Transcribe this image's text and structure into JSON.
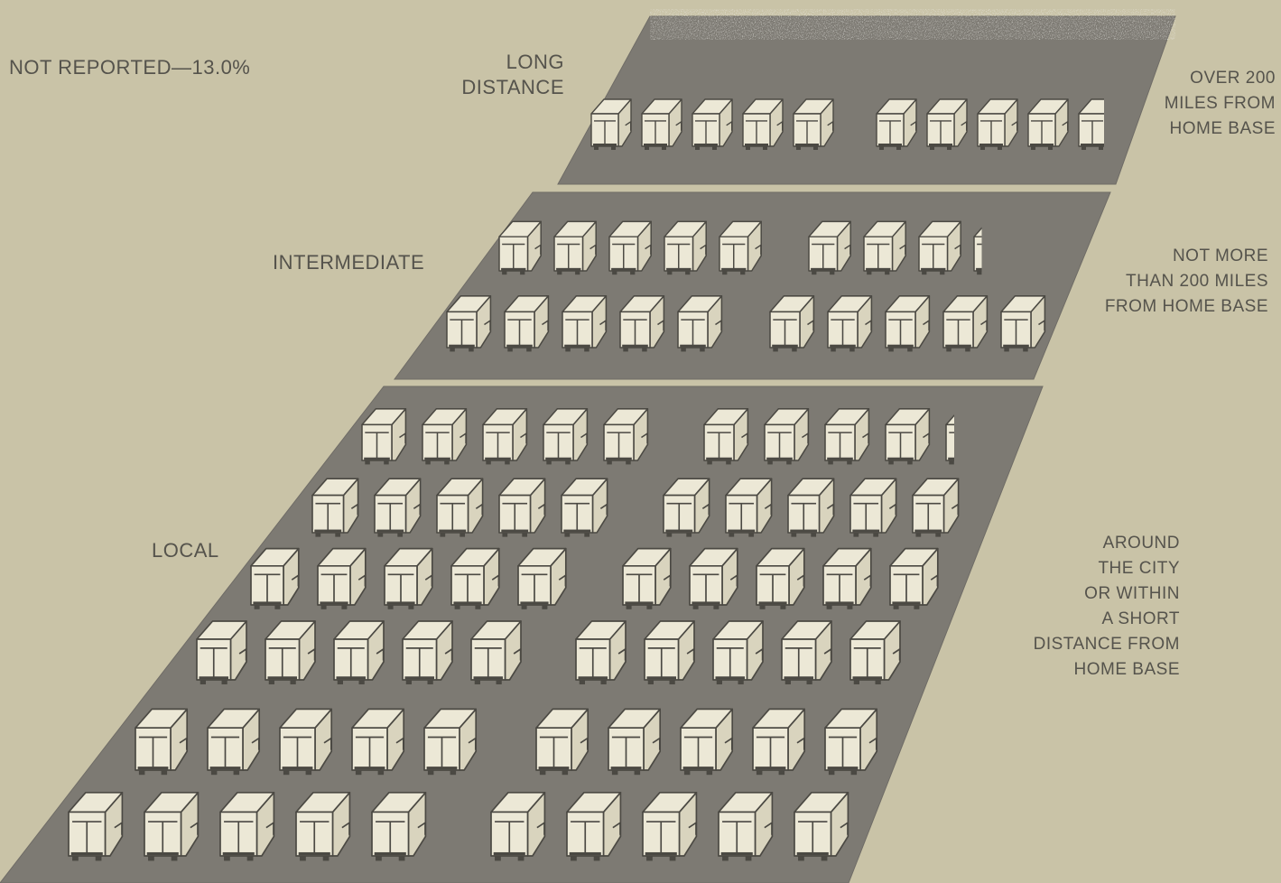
{
  "chart_data": {
    "type": "pictograph",
    "not_reported": "NOT REPORTED—13.0%",
    "bands": [
      {
        "name": "LONG DISTANCE",
        "label": "LONG\nDISTANCE",
        "description": "OVER 200\nMILES FROM\nHOME BASE",
        "rows": [
          9.6
        ]
      },
      {
        "name": "INTERMEDIATE",
        "label": "INTERMEDIATE",
        "description": "NOT MORE\nTHAN 200 MILES\nFROM HOME BASE",
        "rows": [
          8.2,
          10
        ]
      },
      {
        "name": "LOCAL",
        "label": "LOCAL",
        "description": "AROUND\nTHE CITY\nOR WITHIN\nA SHORT\nDISTANCE FROM\nHOME BASE",
        "rows": [
          9.2,
          10,
          10,
          10,
          10,
          10
        ]
      }
    ]
  },
  "colors": {
    "background": "#c9c3a7",
    "band": "#7d7a73",
    "band_edge": "#6f6c66",
    "truck_body": "#d9d4be",
    "truck_front": "#ece8d6",
    "truck_outline": "#4b4943",
    "label_text": "#55534c"
  }
}
